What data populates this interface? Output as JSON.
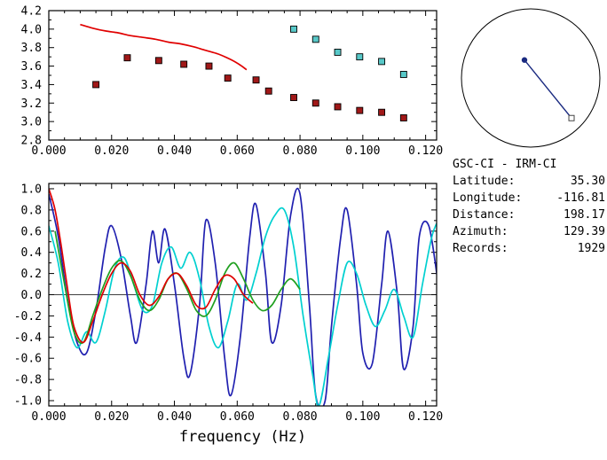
{
  "station_info": {
    "title": "GSC-CI - IRM-CI",
    "rows": [
      {
        "label": "Latitude:",
        "value": "35.30"
      },
      {
        "label": "Longitude:",
        "value": "-116.81"
      },
      {
        "label": "Distance:",
        "value": "198.17"
      },
      {
        "label": "Azimuth:",
        "value": "129.39"
      },
      {
        "label": "Records:",
        "value": "1929"
      }
    ]
  },
  "azimuth_dial": {
    "azimuth_deg": 129.39,
    "dot_pos": [
      -0.09,
      -0.26
    ],
    "square_pos": [
      0.59,
      0.58
    ],
    "dot_color": "#1a2a80",
    "line_color": "#1a2a80",
    "square_fill": "#ffffff",
    "square_stroke": "#444444",
    "circle_color": "#000000"
  },
  "chart_data": [
    {
      "type": "scatter",
      "name": "dispersion-measurements",
      "xlim": [
        0,
        0.1235
      ],
      "ylim": [
        2.8,
        4.2
      ],
      "xticks": [
        0,
        0.02,
        0.04,
        0.06,
        0.08,
        0.1,
        0.12
      ],
      "xtick_labels": [
        "0.000",
        "0.020",
        "0.040",
        "0.060",
        "0.080",
        "0.100",
        "0.120"
      ],
      "xminor": 0.005,
      "yticks": [
        2.8,
        3.0,
        3.2,
        3.4,
        3.6,
        3.8,
        4.0,
        4.2
      ],
      "ytick_labels": [
        "2.8",
        "3.0",
        "3.2",
        "3.4",
        "3.6",
        "3.8",
        "4.0",
        "4.2"
      ],
      "yminor": 0.1,
      "zero_line": false,
      "xlabel": "",
      "series": [
        {
          "name": "reference-curve",
          "type": "line",
          "color": "#e00000",
          "points": [
            [
              0.01,
              4.05
            ],
            [
              0.014,
              4.01
            ],
            [
              0.018,
              3.98
            ],
            [
              0.022,
              3.96
            ],
            [
              0.026,
              3.93
            ],
            [
              0.03,
              3.91
            ],
            [
              0.034,
              3.89
            ],
            [
              0.038,
              3.86
            ],
            [
              0.042,
              3.84
            ],
            [
              0.046,
              3.81
            ],
            [
              0.05,
              3.77
            ],
            [
              0.054,
              3.73
            ],
            [
              0.058,
              3.67
            ],
            [
              0.061,
              3.61
            ],
            [
              0.063,
              3.56
            ]
          ]
        },
        {
          "name": "measured-dark-red-squares",
          "type": "squares",
          "color": "#a01818",
          "points": [
            [
              0.015,
              3.4
            ],
            [
              0.025,
              3.69
            ],
            [
              0.035,
              3.66
            ],
            [
              0.043,
              3.62
            ],
            [
              0.051,
              3.6
            ],
            [
              0.057,
              3.47
            ],
            [
              0.066,
              3.45
            ],
            [
              0.07,
              3.33
            ],
            [
              0.078,
              3.26
            ],
            [
              0.085,
              3.2
            ],
            [
              0.092,
              3.16
            ],
            [
              0.099,
              3.12
            ],
            [
              0.106,
              3.1
            ],
            [
              0.113,
              3.04
            ]
          ]
        },
        {
          "name": "measured-cyan-squares",
          "type": "squares",
          "color": "#58c8c8",
          "points": [
            [
              0.078,
              4.0
            ],
            [
              0.085,
              3.89
            ],
            [
              0.092,
              3.75
            ],
            [
              0.099,
              3.7
            ],
            [
              0.106,
              3.65
            ],
            [
              0.113,
              3.51
            ]
          ]
        }
      ]
    },
    {
      "type": "line",
      "name": "correlation-waveforms",
      "xlim": [
        0,
        0.1235
      ],
      "ylim": [
        -1.05,
        1.05
      ],
      "xticks": [
        0,
        0.02,
        0.04,
        0.06,
        0.08,
        0.1,
        0.12
      ],
      "xtick_labels": [
        "0.000",
        "0.020",
        "0.040",
        "0.060",
        "0.080",
        "0.100",
        "0.120"
      ],
      "xminor": 0.005,
      "yticks": [
        -1.0,
        -0.8,
        -0.6,
        -0.4,
        -0.2,
        0.0,
        0.2,
        0.4,
        0.6,
        0.8,
        1.0
      ],
      "ytick_labels": [
        "-1.0",
        "-0.8",
        "-0.6",
        "-0.4",
        "-0.2",
        "0.0",
        "0.2",
        "0.4",
        "0.6",
        "0.8",
        "1.0"
      ],
      "yminor": 0.1,
      "zero_line": true,
      "xlabel": "frequency (Hz)",
      "series": [
        {
          "name": "waveform-dark-blue",
          "type": "line",
          "color": "#2020b0",
          "points": [
            [
              0.0,
              0.95
            ],
            [
              0.003,
              0.55
            ],
            [
              0.006,
              -0.05
            ],
            [
              0.009,
              -0.45
            ],
            [
              0.012,
              -0.55
            ],
            [
              0.015,
              -0.15
            ],
            [
              0.018,
              0.45
            ],
            [
              0.02,
              0.65
            ],
            [
              0.023,
              0.35
            ],
            [
              0.026,
              -0.2
            ],
            [
              0.028,
              -0.45
            ],
            [
              0.031,
              0.1
            ],
            [
              0.033,
              0.6
            ],
            [
              0.035,
              0.3
            ],
            [
              0.037,
              0.62
            ],
            [
              0.04,
              0.1
            ],
            [
              0.043,
              -0.6
            ],
            [
              0.045,
              -0.75
            ],
            [
              0.048,
              -0.1
            ],
            [
              0.05,
              0.7
            ],
            [
              0.053,
              0.3
            ],
            [
              0.056,
              -0.6
            ],
            [
              0.058,
              -0.95
            ],
            [
              0.061,
              -0.4
            ],
            [
              0.064,
              0.55
            ],
            [
              0.066,
              0.85
            ],
            [
              0.069,
              0.2
            ],
            [
              0.071,
              -0.45
            ],
            [
              0.074,
              -0.1
            ],
            [
              0.077,
              0.75
            ],
            [
              0.08,
              0.95
            ],
            [
              0.083,
              -0.1
            ],
            [
              0.085,
              -0.95
            ],
            [
              0.088,
              -1.0
            ],
            [
              0.09,
              -0.3
            ],
            [
              0.093,
              0.55
            ],
            [
              0.095,
              0.8
            ],
            [
              0.098,
              0.1
            ],
            [
              0.1,
              -0.55
            ],
            [
              0.103,
              -0.65
            ],
            [
              0.106,
              0.1
            ],
            [
              0.108,
              0.6
            ],
            [
              0.111,
              0.0
            ],
            [
              0.113,
              -0.7
            ],
            [
              0.116,
              -0.3
            ],
            [
              0.118,
              0.55
            ],
            [
              0.121,
              0.65
            ],
            [
              0.124,
              0.1
            ]
          ]
        },
        {
          "name": "waveform-cyan",
          "type": "line",
          "color": "#00d0d0",
          "points": [
            [
              0.0,
              0.65
            ],
            [
              0.003,
              0.3
            ],
            [
              0.006,
              -0.25
            ],
            [
              0.009,
              -0.5
            ],
            [
              0.012,
              -0.35
            ],
            [
              0.015,
              -0.45
            ],
            [
              0.018,
              -0.15
            ],
            [
              0.021,
              0.25
            ],
            [
              0.024,
              0.35
            ],
            [
              0.027,
              0.1
            ],
            [
              0.03,
              -0.15
            ],
            [
              0.033,
              -0.1
            ],
            [
              0.036,
              0.3
            ],
            [
              0.039,
              0.45
            ],
            [
              0.042,
              0.25
            ],
            [
              0.045,
              0.4
            ],
            [
              0.048,
              0.15
            ],
            [
              0.051,
              -0.3
            ],
            [
              0.054,
              -0.5
            ],
            [
              0.057,
              -0.25
            ],
            [
              0.06,
              0.1
            ],
            [
              0.063,
              -0.05
            ],
            [
              0.066,
              0.2
            ],
            [
              0.069,
              0.55
            ],
            [
              0.072,
              0.75
            ],
            [
              0.075,
              0.8
            ],
            [
              0.078,
              0.45
            ],
            [
              0.081,
              -0.2
            ],
            [
              0.084,
              -0.75
            ],
            [
              0.086,
              -1.05
            ],
            [
              0.089,
              -0.6
            ],
            [
              0.092,
              -0.1
            ],
            [
              0.095,
              0.3
            ],
            [
              0.098,
              0.2
            ],
            [
              0.101,
              -0.1
            ],
            [
              0.104,
              -0.3
            ],
            [
              0.107,
              -0.15
            ],
            [
              0.11,
              0.05
            ],
            [
              0.113,
              -0.2
            ],
            [
              0.116,
              -0.4
            ],
            [
              0.119,
              0.1
            ],
            [
              0.122,
              0.55
            ],
            [
              0.124,
              0.7
            ]
          ]
        },
        {
          "name": "waveform-green",
          "type": "line",
          "color": "#20a020",
          "points": [
            [
              0.002,
              0.6
            ],
            [
              0.005,
              0.1
            ],
            [
              0.008,
              -0.35
            ],
            [
              0.011,
              -0.45
            ],
            [
              0.014,
              -0.2
            ],
            [
              0.017,
              0.05
            ],
            [
              0.02,
              0.25
            ],
            [
              0.023,
              0.32
            ],
            [
              0.026,
              0.18
            ],
            [
              0.029,
              -0.05
            ],
            [
              0.032,
              -0.15
            ],
            [
              0.035,
              -0.05
            ],
            [
              0.038,
              0.15
            ],
            [
              0.041,
              0.2
            ],
            [
              0.044,
              0.05
            ],
            [
              0.047,
              -0.15
            ],
            [
              0.05,
              -0.2
            ],
            [
              0.053,
              -0.05
            ],
            [
              0.056,
              0.2
            ],
            [
              0.059,
              0.3
            ],
            [
              0.062,
              0.15
            ],
            [
              0.065,
              -0.05
            ],
            [
              0.068,
              -0.15
            ],
            [
              0.071,
              -0.1
            ],
            [
              0.074,
              0.05
            ],
            [
              0.077,
              0.15
            ],
            [
              0.08,
              0.05
            ]
          ]
        },
        {
          "name": "waveform-red",
          "type": "line",
          "color": "#e00000",
          "points": [
            [
              0.0,
              1.0
            ],
            [
              0.002,
              0.8
            ],
            [
              0.004,
              0.45
            ],
            [
              0.006,
              0.05
            ],
            [
              0.008,
              -0.3
            ],
            [
              0.011,
              -0.45
            ],
            [
              0.014,
              -0.25
            ],
            [
              0.017,
              0.0
            ],
            [
              0.02,
              0.2
            ],
            [
              0.023,
              0.3
            ],
            [
              0.026,
              0.22
            ],
            [
              0.029,
              0.0
            ],
            [
              0.032,
              -0.1
            ],
            [
              0.035,
              -0.02
            ],
            [
              0.038,
              0.15
            ],
            [
              0.041,
              0.2
            ],
            [
              0.044,
              0.08
            ],
            [
              0.047,
              -0.1
            ],
            [
              0.05,
              -0.12
            ],
            [
              0.053,
              0.05
            ],
            [
              0.056,
              0.18
            ],
            [
              0.059,
              0.15
            ],
            [
              0.062,
              0.0
            ],
            [
              0.065,
              -0.08
            ]
          ]
        }
      ]
    }
  ]
}
